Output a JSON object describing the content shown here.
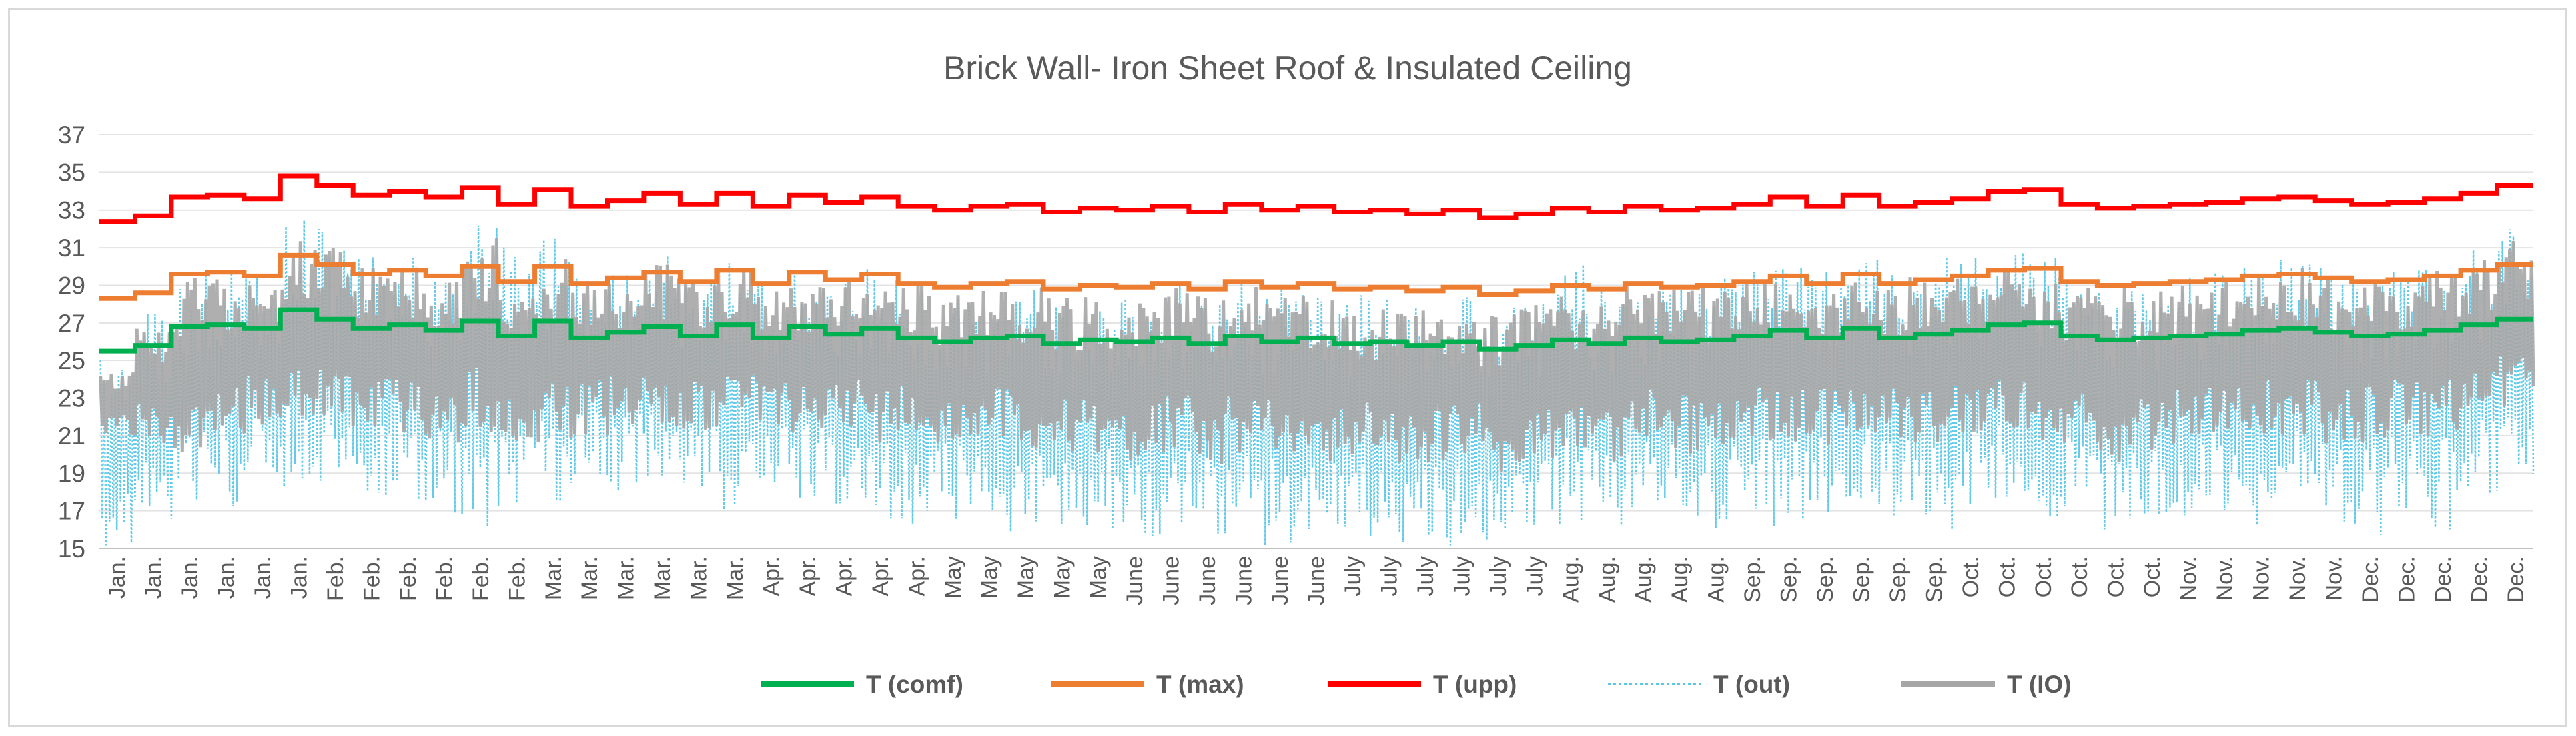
{
  "chart_data": {
    "type": "line",
    "title": "Brick Wall- Iron Sheet Roof & Insulated Ceiling",
    "xlabel": "",
    "ylabel": "",
    "ylim": [
      15,
      37
    ],
    "yticks": [
      15,
      17,
      19,
      21,
      23,
      25,
      27,
      29,
      31,
      33,
      35,
      37
    ],
    "grid": true,
    "legend_position": "bottom-center",
    "categories": [
      "Jan.",
      "Jan.",
      "Jan.",
      "Jan.",
      "Jan.",
      "Jan.",
      "Feb.",
      "Feb.",
      "Feb.",
      "Feb.",
      "Feb.",
      "Feb.",
      "Mar.",
      "Mar.",
      "Mar.",
      "Mar.",
      "Mar.",
      "Mar.",
      "Apr.",
      "Apr.",
      "Apr.",
      "Apr.",
      "Apr.",
      "May",
      "May",
      "May",
      "May",
      "May",
      "June",
      "June",
      "June",
      "June",
      "June",
      "June",
      "July",
      "July",
      "July",
      "July",
      "July",
      "July",
      "Aug.",
      "Aug.",
      "Aug.",
      "Aug.",
      "Aug.",
      "Sep.",
      "Sep.",
      "Sep.",
      "Sep.",
      "Sep.",
      "Sep.",
      "Oct.",
      "Oct.",
      "Oct.",
      "Oct.",
      "Oct.",
      "Oct.",
      "Nov.",
      "Nov.",
      "Nov.",
      "Nov.",
      "Nov.",
      "Dec.",
      "Dec.",
      "Dec.",
      "Dec.",
      "Dec."
    ],
    "series": [
      {
        "name": "T (comf)",
        "color": "#00b050",
        "style": "solid",
        "values": [
          25.5,
          25.8,
          26.8,
          26.9,
          26.7,
          27.7,
          27.2,
          26.7,
          26.9,
          26.6,
          27.1,
          26.3,
          27.1,
          26.2,
          26.5,
          26.8,
          26.3,
          26.9,
          26.2,
          26.8,
          26.4,
          26.7,
          26.2,
          26.0,
          26.2,
          26.3,
          25.9,
          26.1,
          26.0,
          26.2,
          25.9,
          26.3,
          26.0,
          26.2,
          25.9,
          26.0,
          25.8,
          26.0,
          25.6,
          25.8,
          26.1,
          25.9,
          26.2,
          26.0,
          26.1,
          26.3,
          26.6,
          26.2,
          26.7,
          26.2,
          26.4,
          26.6,
          26.9,
          27.0,
          26.3,
          26.1,
          26.2,
          26.3,
          26.4,
          26.6,
          26.7,
          26.5,
          26.3,
          26.4,
          26.6,
          26.9,
          27.2
        ]
      },
      {
        "name": "T (max)",
        "color": "#ed7d31",
        "style": "solid",
        "values": [
          28.3,
          28.6,
          29.6,
          29.7,
          29.5,
          30.6,
          30.1,
          29.6,
          29.8,
          29.5,
          30.0,
          29.2,
          30.0,
          29.1,
          29.4,
          29.7,
          29.2,
          29.8,
          29.1,
          29.7,
          29.3,
          29.6,
          29.1,
          28.9,
          29.1,
          29.2,
          28.8,
          29.0,
          28.9,
          29.1,
          28.8,
          29.2,
          28.9,
          29.1,
          28.8,
          28.9,
          28.7,
          28.9,
          28.5,
          28.7,
          29.0,
          28.8,
          29.1,
          28.9,
          29.0,
          29.2,
          29.5,
          29.1,
          29.6,
          29.1,
          29.3,
          29.5,
          29.8,
          29.9,
          29.2,
          29.0,
          29.1,
          29.2,
          29.3,
          29.5,
          29.6,
          29.4,
          29.2,
          29.3,
          29.5,
          29.8,
          30.1
        ]
      },
      {
        "name": "T (upp)",
        "color": "#ff0000",
        "style": "solid",
        "values": [
          32.4,
          32.7,
          33.7,
          33.8,
          33.6,
          34.8,
          34.3,
          33.8,
          34.0,
          33.7,
          34.2,
          33.3,
          34.1,
          33.2,
          33.5,
          33.9,
          33.3,
          33.9,
          33.2,
          33.8,
          33.4,
          33.7,
          33.2,
          33.0,
          33.2,
          33.3,
          32.9,
          33.1,
          33.0,
          33.2,
          32.9,
          33.3,
          33.0,
          33.2,
          32.9,
          33.0,
          32.8,
          33.0,
          32.6,
          32.8,
          33.1,
          32.9,
          33.2,
          33.0,
          33.1,
          33.3,
          33.7,
          33.2,
          33.8,
          33.2,
          33.4,
          33.6,
          34.0,
          34.1,
          33.3,
          33.1,
          33.2,
          33.3,
          33.4,
          33.6,
          33.7,
          33.5,
          33.3,
          33.4,
          33.6,
          33.9,
          34.3
        ]
      },
      {
        "name": "T (out)",
        "color": "#5bc8e8",
        "style": "dotted",
        "range_min": [
          15.0,
          16.5,
          17.5,
          17.0,
          18.0,
          17.5,
          18.5,
          17.0,
          17.5,
          16.5,
          16.0,
          17.0,
          17.5,
          18.5,
          18.0,
          17.5,
          18.0,
          17.0,
          18.5,
          17.5,
          17.0,
          16.5,
          16.0,
          16.5,
          16.0,
          15.5,
          15.5,
          16.0,
          15.5,
          15.5,
          15.0,
          15.5,
          15.0,
          15.5,
          15.5,
          15.0,
          15.5,
          15.0,
          15.0,
          15.5,
          16.0,
          15.5,
          16.0,
          16.5,
          16.0,
          16.5,
          16.0,
          16.5,
          17.0,
          16.5,
          16.0,
          17.0,
          16.5,
          16.0,
          16.5,
          15.5,
          16.0,
          16.5,
          16.5,
          16.0,
          16.5,
          16.0,
          15.5,
          16.5,
          16.0,
          17.0,
          18.0
        ],
        "range_max": [
          25.0,
          27.5,
          29.5,
          30.0,
          30.0,
          33.0,
          32.0,
          31.0,
          30.5,
          30.0,
          33.0,
          31.5,
          31.5,
          29.5,
          30.0,
          31.0,
          29.5,
          30.5,
          29.0,
          30.0,
          29.5,
          30.0,
          29.0,
          28.5,
          28.5,
          29.0,
          28.5,
          28.5,
          29.0,
          29.5,
          29.0,
          29.5,
          29.0,
          29.0,
          28.5,
          28.5,
          28.5,
          28.5,
          28.0,
          28.5,
          31.0,
          29.0,
          29.5,
          29.5,
          29.5,
          30.0,
          30.5,
          30.0,
          30.5,
          30.0,
          30.5,
          30.5,
          31.0,
          30.5,
          29.5,
          29.5,
          29.0,
          29.5,
          30.0,
          30.5,
          31.0,
          30.0,
          29.5,
          30.0,
          30.5,
          31.0,
          32.5
        ]
      },
      {
        "name": "T (IO)",
        "color": "#a6a6a6",
        "style": "solid",
        "range_min": [
          21.0,
          20.5,
          20.0,
          21.0,
          21.5,
          22.0,
          21.5,
          21.5,
          21.0,
          20.5,
          21.0,
          20.5,
          20.5,
          21.0,
          21.5,
          21.0,
          21.0,
          21.5,
          21.5,
          21.0,
          21.0,
          20.5,
          21.0,
          20.5,
          20.5,
          20.0,
          20.0,
          20.0,
          19.5,
          20.0,
          19.5,
          20.0,
          20.0,
          19.5,
          20.0,
          19.5,
          19.5,
          20.0,
          19.0,
          19.5,
          20.0,
          19.5,
          20.5,
          20.0,
          20.0,
          20.5,
          20.5,
          20.5,
          21.0,
          20.5,
          20.5,
          21.0,
          21.0,
          20.5,
          20.5,
          19.5,
          20.0,
          20.5,
          20.5,
          21.0,
          21.0,
          20.5,
          20.5,
          21.0,
          21.0,
          21.5,
          22.0
        ],
        "range_max": [
          24.5,
          27.0,
          29.5,
          29.5,
          29.5,
          31.5,
          31.0,
          30.0,
          30.5,
          29.5,
          31.5,
          30.0,
          30.5,
          29.5,
          29.5,
          30.5,
          29.5,
          30.0,
          29.0,
          29.5,
          29.5,
          29.5,
          29.0,
          28.5,
          29.0,
          29.0,
          28.5,
          28.5,
          28.5,
          29.0,
          28.5,
          29.0,
          28.5,
          28.5,
          28.0,
          28.0,
          28.0,
          28.0,
          27.5,
          28.0,
          28.5,
          28.5,
          29.0,
          29.0,
          29.0,
          29.5,
          29.5,
          29.5,
          29.5,
          29.5,
          29.5,
          30.0,
          30.0,
          29.5,
          29.0,
          29.0,
          29.0,
          29.0,
          29.5,
          29.5,
          30.0,
          29.5,
          29.5,
          29.5,
          30.0,
          30.5,
          31.5
        ]
      }
    ]
  }
}
